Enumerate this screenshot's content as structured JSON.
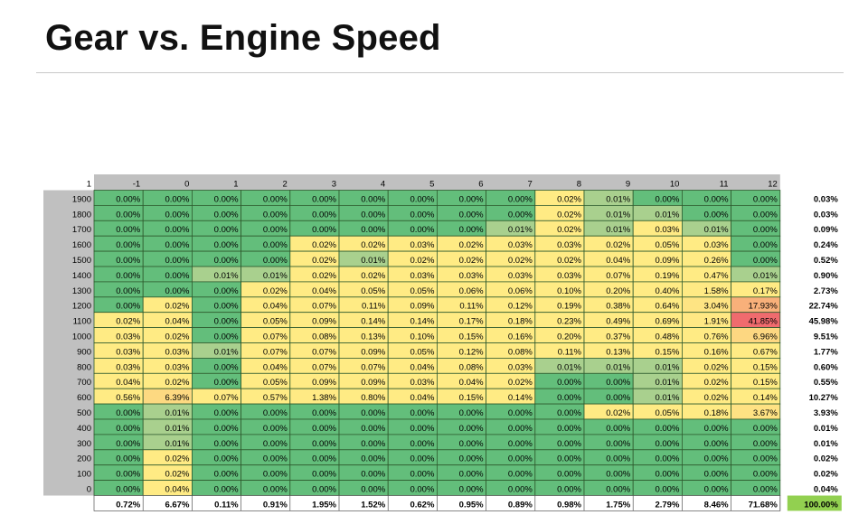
{
  "page": {
    "title": "Gear vs. Engine Speed"
  },
  "chart_data": {
    "type": "heatmap",
    "corner_label": "1",
    "gears": [
      "-1",
      "0",
      "1",
      "2",
      "3",
      "4",
      "5",
      "6",
      "7",
      "8",
      "9",
      "10",
      "11",
      "12"
    ],
    "rpm": [
      "1900",
      "1800",
      "1700",
      "1600",
      "1500",
      "1400",
      "1300",
      "1200",
      "1100",
      "1000",
      "900",
      "800",
      "700",
      "600",
      "500",
      "400",
      "300",
      "200",
      "100",
      "0"
    ],
    "cells": [
      [
        "0.00%",
        "0.00%",
        "0.00%",
        "0.00%",
        "0.00%",
        "0.00%",
        "0.00%",
        "0.00%",
        "0.00%",
        "0.02%",
        "0.01%",
        "0.00%",
        "0.00%",
        "0.00%"
      ],
      [
        "0.00%",
        "0.00%",
        "0.00%",
        "0.00%",
        "0.00%",
        "0.00%",
        "0.00%",
        "0.00%",
        "0.00%",
        "0.02%",
        "0.01%",
        "0.01%",
        "0.00%",
        "0.00%"
      ],
      [
        "0.00%",
        "0.00%",
        "0.00%",
        "0.00%",
        "0.00%",
        "0.00%",
        "0.00%",
        "0.00%",
        "0.01%",
        "0.02%",
        "0.01%",
        "0.03%",
        "0.01%",
        "0.00%"
      ],
      [
        "0.00%",
        "0.00%",
        "0.00%",
        "0.00%",
        "0.02%",
        "0.02%",
        "0.03%",
        "0.02%",
        "0.03%",
        "0.03%",
        "0.02%",
        "0.05%",
        "0.03%",
        "0.00%"
      ],
      [
        "0.00%",
        "0.00%",
        "0.00%",
        "0.00%",
        "0.02%",
        "0.01%",
        "0.02%",
        "0.02%",
        "0.02%",
        "0.02%",
        "0.04%",
        "0.09%",
        "0.26%",
        "0.00%"
      ],
      [
        "0.00%",
        "0.00%",
        "0.01%",
        "0.01%",
        "0.02%",
        "0.02%",
        "0.03%",
        "0.03%",
        "0.03%",
        "0.03%",
        "0.07%",
        "0.19%",
        "0.47%",
        "0.01%"
      ],
      [
        "0.00%",
        "0.00%",
        "0.00%",
        "0.02%",
        "0.04%",
        "0.05%",
        "0.05%",
        "0.06%",
        "0.06%",
        "0.10%",
        "0.20%",
        "0.40%",
        "1.58%",
        "0.17%"
      ],
      [
        "0.00%",
        "0.02%",
        "0.00%",
        "0.04%",
        "0.07%",
        "0.11%",
        "0.09%",
        "0.11%",
        "0.12%",
        "0.19%",
        "0.38%",
        "0.64%",
        "3.04%",
        "17.93%"
      ],
      [
        "0.02%",
        "0.04%",
        "0.00%",
        "0.05%",
        "0.09%",
        "0.14%",
        "0.14%",
        "0.17%",
        "0.18%",
        "0.23%",
        "0.49%",
        "0.69%",
        "1.91%",
        "41.85%"
      ],
      [
        "0.03%",
        "0.02%",
        "0.00%",
        "0.07%",
        "0.08%",
        "0.13%",
        "0.10%",
        "0.15%",
        "0.16%",
        "0.20%",
        "0.37%",
        "0.48%",
        "0.76%",
        "6.96%"
      ],
      [
        "0.03%",
        "0.03%",
        "0.01%",
        "0.07%",
        "0.07%",
        "0.09%",
        "0.05%",
        "0.12%",
        "0.08%",
        "0.11%",
        "0.13%",
        "0.15%",
        "0.16%",
        "0.67%"
      ],
      [
        "0.03%",
        "0.03%",
        "0.00%",
        "0.04%",
        "0.07%",
        "0.07%",
        "0.04%",
        "0.08%",
        "0.03%",
        "0.01%",
        "0.01%",
        "0.01%",
        "0.02%",
        "0.15%"
      ],
      [
        "0.04%",
        "0.02%",
        "0.00%",
        "0.05%",
        "0.09%",
        "0.09%",
        "0.03%",
        "0.04%",
        "0.02%",
        "0.00%",
        "0.00%",
        "0.01%",
        "0.02%",
        "0.15%"
      ],
      [
        "0.56%",
        "6.39%",
        "0.07%",
        "0.57%",
        "1.38%",
        "0.80%",
        "0.04%",
        "0.15%",
        "0.14%",
        "0.00%",
        "0.00%",
        "0.01%",
        "0.02%",
        "0.14%"
      ],
      [
        "0.00%",
        "0.01%",
        "0.00%",
        "0.00%",
        "0.00%",
        "0.00%",
        "0.00%",
        "0.00%",
        "0.00%",
        "0.00%",
        "0.02%",
        "0.05%",
        "0.18%",
        "3.67%"
      ],
      [
        "0.00%",
        "0.01%",
        "0.00%",
        "0.00%",
        "0.00%",
        "0.00%",
        "0.00%",
        "0.00%",
        "0.00%",
        "0.00%",
        "0.00%",
        "0.00%",
        "0.00%",
        "0.00%"
      ],
      [
        "0.00%",
        "0.01%",
        "0.00%",
        "0.00%",
        "0.00%",
        "0.00%",
        "0.00%",
        "0.00%",
        "0.00%",
        "0.00%",
        "0.00%",
        "0.00%",
        "0.00%",
        "0.00%"
      ],
      [
        "0.00%",
        "0.02%",
        "0.00%",
        "0.00%",
        "0.00%",
        "0.00%",
        "0.00%",
        "0.00%",
        "0.00%",
        "0.00%",
        "0.00%",
        "0.00%",
        "0.00%",
        "0.00%"
      ],
      [
        "0.00%",
        "0.02%",
        "0.00%",
        "0.00%",
        "0.00%",
        "0.00%",
        "0.00%",
        "0.00%",
        "0.00%",
        "0.00%",
        "0.00%",
        "0.00%",
        "0.00%",
        "0.00%"
      ],
      [
        "0.00%",
        "0.04%",
        "0.00%",
        "0.00%",
        "0.00%",
        "0.00%",
        "0.00%",
        "0.00%",
        "0.00%",
        "0.00%",
        "0.00%",
        "0.00%",
        "0.00%",
        "0.00%"
      ]
    ],
    "row_totals": [
      "0.03%",
      "0.03%",
      "0.09%",
      "0.24%",
      "0.52%",
      "0.90%",
      "2.73%",
      "22.74%",
      "45.98%",
      "9.51%",
      "1.77%",
      "0.60%",
      "0.55%",
      "10.27%",
      "3.93%",
      "0.01%",
      "0.01%",
      "0.02%",
      "0.02%",
      "0.04%"
    ],
    "col_totals": [
      "0.72%",
      "6.67%",
      "0.11%",
      "0.91%",
      "1.95%",
      "1.52%",
      "0.62%",
      "0.95%",
      "0.89%",
      "0.98%",
      "1.75%",
      "2.79%",
      "8.46%",
      "71.68%"
    ],
    "grand_total": "100.00%",
    "colors": {
      "header_gray": "#c0c0c0",
      "green": "#63be7b",
      "light_green": "#a9d08e",
      "yellow": "#ffeb84",
      "orange": "#f8b07a",
      "red": "#f06b6e",
      "total_cell_green": "#92d050"
    }
  }
}
